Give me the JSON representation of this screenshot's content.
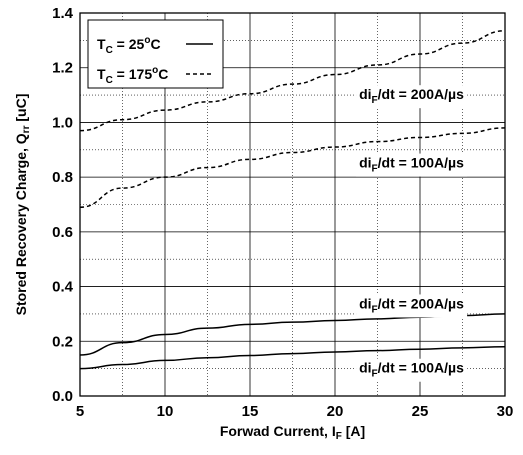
{
  "chart_data": {
    "type": "line",
    "xlabel": {
      "main": "Forwad Current, I",
      "sub": "F",
      "unit": " [A]"
    },
    "ylabel": {
      "main": "Stored Recovery Charge, Q",
      "sub": "rr",
      "unit": " [uC]"
    },
    "xlim": [
      5,
      30
    ],
    "ylim": [
      0.0,
      1.4
    ],
    "x_ticks": [
      "5",
      "10",
      "15",
      "20",
      "25",
      "30"
    ],
    "y_ticks": [
      "0.0",
      "0.2",
      "0.4",
      "0.6",
      "0.8",
      "1.0",
      "1.2",
      "1.4"
    ],
    "grid": true,
    "legend": {
      "position": "top-left",
      "entries": [
        {
          "pre": "T",
          "sub": "C",
          "mid": " = 25",
          "sup": "o",
          "post": "C",
          "style": "solid"
        },
        {
          "pre": "T",
          "sub": "C",
          "mid": " = 175",
          "sup": "o",
          "post": "C",
          "style": "dashed"
        }
      ]
    },
    "series": [
      {
        "temperature": "175C",
        "rate": "200A/us",
        "style": "dashed",
        "x": [
          5,
          7.5,
          10,
          12.5,
          15,
          17.5,
          20,
          22.5,
          25,
          27.5,
          30
        ],
        "y": [
          0.97,
          1.01,
          1.045,
          1.075,
          1.105,
          1.14,
          1.175,
          1.21,
          1.25,
          1.29,
          1.335
        ]
      },
      {
        "temperature": "175C",
        "rate": "100A/us",
        "style": "dashed",
        "x": [
          5,
          7.5,
          10,
          12.5,
          15,
          17.5,
          20,
          22.5,
          25,
          27.5,
          30
        ],
        "y": [
          0.69,
          0.76,
          0.8,
          0.835,
          0.865,
          0.89,
          0.91,
          0.93,
          0.945,
          0.96,
          0.98
        ]
      },
      {
        "temperature": "25C",
        "rate": "200A/us",
        "style": "solid",
        "x": [
          5,
          7.5,
          10,
          12.5,
          15,
          17.5,
          20,
          22.5,
          25,
          27.5,
          30
        ],
        "y": [
          0.15,
          0.195,
          0.225,
          0.248,
          0.262,
          0.27,
          0.276,
          0.282,
          0.288,
          0.294,
          0.3
        ]
      },
      {
        "temperature": "25C",
        "rate": "100A/us",
        "style": "solid",
        "x": [
          5,
          7.5,
          10,
          12.5,
          15,
          17.5,
          20,
          22.5,
          25,
          27.5,
          30
        ],
        "y": [
          0.1,
          0.115,
          0.13,
          0.14,
          0.148,
          0.155,
          0.161,
          0.166,
          0.171,
          0.176,
          0.18
        ]
      }
    ],
    "annotations": [
      {
        "name": "label-175c-200",
        "pre": "di",
        "sub": "F",
        "post": "/dt = 200A/µs",
        "x": 24.5,
        "y": 1.085
      },
      {
        "name": "label-175c-100",
        "pre": "di",
        "sub": "F",
        "post": "/dt = 100A/µs",
        "x": 24.5,
        "y": 0.835
      },
      {
        "name": "label-25c-200",
        "pre": "di",
        "sub": "F",
        "post": "/dt = 200A/µs",
        "x": 24.5,
        "y": 0.32
      },
      {
        "name": "label-25c-100",
        "pre": "di",
        "sub": "F",
        "post": "/dt = 100A/µs",
        "x": 24.5,
        "y": 0.085
      }
    ]
  }
}
